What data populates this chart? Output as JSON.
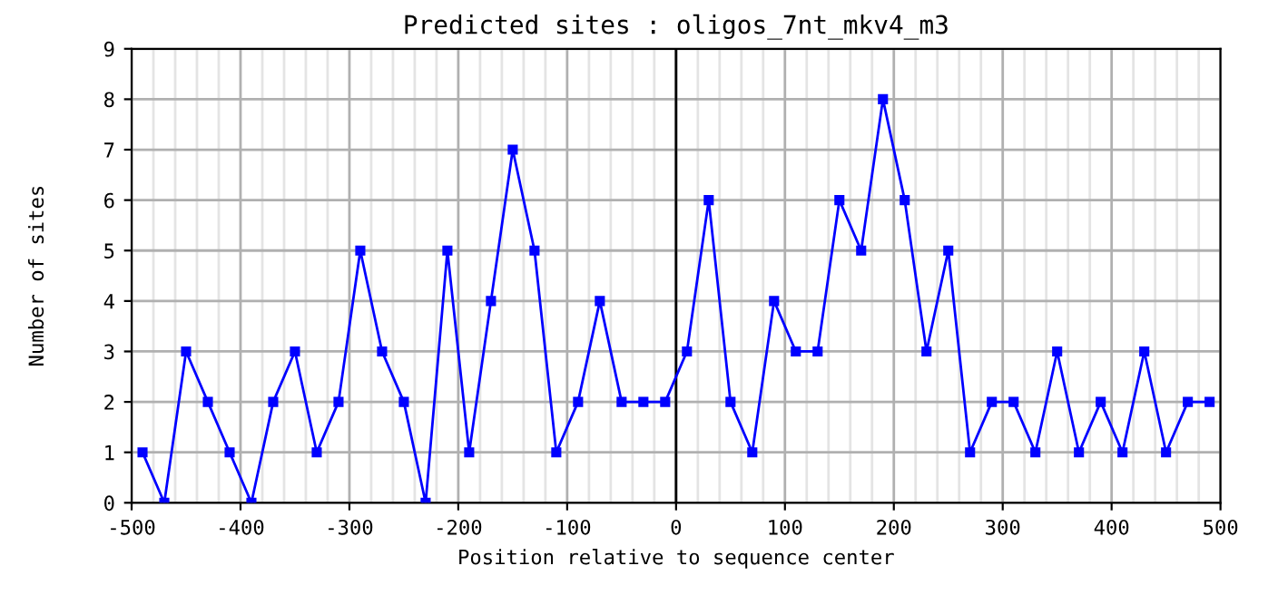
{
  "chart_data": {
    "type": "line",
    "title": "Predicted sites : oligos_7nt_mkv4_m3",
    "xlabel": "Position relative to sequence center",
    "ylabel": "Number of sites",
    "x": [
      -490,
      -470,
      -450,
      -430,
      -410,
      -390,
      -370,
      -350,
      -330,
      -310,
      -290,
      -270,
      -250,
      -230,
      -210,
      -190,
      -170,
      -150,
      -130,
      -110,
      -90,
      -70,
      -50,
      -30,
      -10,
      10,
      30,
      50,
      70,
      90,
      110,
      130,
      150,
      170,
      190,
      210,
      230,
      250,
      270,
      290,
      310,
      330,
      350,
      370,
      390,
      410,
      430,
      450,
      470,
      490
    ],
    "series": [
      {
        "color": "#0000ff",
        "values": [
          1,
          0,
          3,
          2,
          1,
          0,
          2,
          3,
          1,
          2,
          5,
          3,
          2,
          0,
          5,
          1,
          4,
          7,
          5,
          1,
          2,
          4,
          2,
          2,
          2,
          3,
          6,
          2,
          1,
          4,
          3,
          3,
          6,
          5,
          8,
          6,
          3,
          5,
          1,
          2,
          2,
          1,
          3,
          1,
          2,
          1,
          3,
          1,
          2,
          2
        ]
      }
    ],
    "xlim": [
      -500,
      500
    ],
    "ylim": [
      0,
      9
    ],
    "xticks": [
      -500,
      {
        "value": -480,
        "label": null
      },
      {
        "value": -460,
        "label": null
      },
      {
        "value": -440,
        "label": null
      },
      {
        "value": -420,
        "label": null
      },
      -400,
      {
        "value": -380,
        "label": null
      },
      {
        "value": -360,
        "label": null
      },
      {
        "value": -340,
        "label": null
      },
      {
        "value": -320,
        "label": null
      },
      -300,
      {
        "value": -280,
        "label": null
      },
      {
        "value": -260,
        "label": null
      },
      {
        "value": -240,
        "label": null
      },
      {
        "value": -220,
        "label": null
      },
      -200,
      {
        "value": -180,
        "label": null
      },
      {
        "value": -160,
        "label": null
      },
      {
        "value": -140,
        "label": null
      },
      {
        "value": -120,
        "label": null
      },
      -100,
      {
        "value": -80,
        "label": null
      },
      {
        "value": -60,
        "label": null
      },
      {
        "value": -40,
        "label": null
      },
      {
        "value": -20,
        "label": null
      },
      0,
      {
        "value": 20,
        "label": null
      },
      {
        "value": 40,
        "label": null
      },
      {
        "value": 60,
        "label": null
      },
      {
        "value": 80,
        "label": null
      },
      100,
      {
        "value": 120,
        "label": null
      },
      {
        "value": 140,
        "label": null
      },
      {
        "value": 160,
        "label": null
      },
      {
        "value": 180,
        "label": null
      },
      200,
      {
        "value": 220,
        "label": null
      },
      {
        "value": 240,
        "label": null
      },
      {
        "value": 260,
        "label": null
      },
      {
        "value": 280,
        "label": null
      },
      300,
      {
        "value": 320,
        "label": null
      },
      {
        "value": 340,
        "label": null
      },
      {
        "value": 360,
        "label": null
      },
      {
        "value": 380,
        "label": null
      },
      400,
      {
        "value": 420,
        "label": null
      },
      {
        "value": 440,
        "label": null
      },
      {
        "value": 460,
        "label": null
      },
      {
        "value": 480,
        "label": null
      },
      500
    ],
    "yticks": [
      0,
      1,
      2,
      3,
      4,
      5,
      6,
      7,
      8,
      9
    ],
    "grid": true,
    "marker": "square",
    "line_style": "solid",
    "ref_lines": [
      {
        "axis": "x",
        "value": 0,
        "color": "#000000",
        "line_style": "solid"
      }
    ]
  }
}
